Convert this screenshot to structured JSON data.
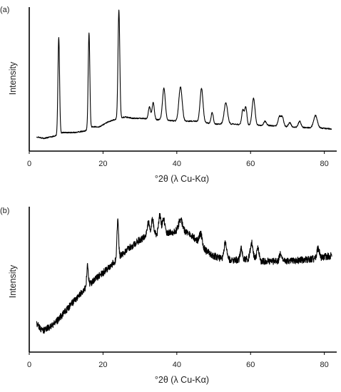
{
  "chart_data": [
    {
      "type": "line",
      "panel_label": "(a)",
      "xlabel": "°2θ (λ Cu-Kα)",
      "ylabel": "Intensity",
      "xlim": [
        0,
        82
      ],
      "xticks": [
        0,
        20,
        40,
        60,
        80
      ],
      "ylim": [
        0,
        100
      ],
      "yticks_shown": false,
      "grid": false,
      "legend": "none",
      "baseline": [
        [
          2,
          10
        ],
        [
          4,
          9
        ],
        [
          6,
          10
        ],
        [
          7.5,
          11
        ],
        [
          9,
          13
        ],
        [
          12,
          13
        ],
        [
          15,
          14
        ],
        [
          17,
          17
        ],
        [
          19,
          17
        ],
        [
          21,
          20
        ],
        [
          23,
          22
        ],
        [
          26,
          24
        ],
        [
          28,
          23
        ],
        [
          31,
          23
        ],
        [
          33,
          22
        ],
        [
          36,
          22
        ],
        [
          40,
          21
        ],
        [
          45,
          21
        ],
        [
          50,
          19
        ],
        [
          55,
          19
        ],
        [
          60,
          18
        ],
        [
          65,
          18
        ],
        [
          70,
          17
        ],
        [
          75,
          16.5
        ],
        [
          80,
          16
        ],
        [
          82,
          15.5
        ]
      ],
      "peaks": [
        {
          "x": 8.0,
          "y": 80,
          "w": 0.22
        },
        {
          "x": 16.2,
          "y": 83,
          "w": 0.22
        },
        {
          "x": 24.3,
          "y": 99,
          "w": 0.24
        },
        {
          "x": 32.6,
          "y": 31,
          "w": 0.3
        },
        {
          "x": 33.6,
          "y": 34,
          "w": 0.3
        },
        {
          "x": 36.5,
          "y": 44,
          "w": 0.38
        },
        {
          "x": 41.0,
          "y": 45,
          "w": 0.45
        },
        {
          "x": 46.7,
          "y": 44,
          "w": 0.4
        },
        {
          "x": 49.6,
          "y": 27,
          "w": 0.3
        },
        {
          "x": 53.3,
          "y": 34,
          "w": 0.45
        },
        {
          "x": 57.9,
          "y": 29,
          "w": 0.3
        },
        {
          "x": 58.7,
          "y": 31,
          "w": 0.3
        },
        {
          "x": 60.8,
          "y": 37,
          "w": 0.4
        },
        {
          "x": 63.9,
          "y": 21,
          "w": 0.35
        },
        {
          "x": 67.8,
          "y": 24,
          "w": 0.35
        },
        {
          "x": 68.6,
          "y": 24,
          "w": 0.35
        },
        {
          "x": 70.6,
          "y": 20,
          "w": 0.35
        },
        {
          "x": 73.3,
          "y": 21,
          "w": 0.35
        },
        {
          "x": 77.6,
          "y": 25,
          "w": 0.5
        }
      ],
      "noise": 0.4
    },
    {
      "type": "line",
      "panel_label": "(b)",
      "xlabel": "°2θ (λ Cu-Kα)",
      "ylabel": "Intensity",
      "xlim": [
        0,
        82
      ],
      "xticks": [
        0,
        20,
        40,
        60,
        80
      ],
      "ylim": [
        0,
        100
      ],
      "yticks_shown": false,
      "grid": false,
      "legend": "none",
      "baseline": [
        [
          2,
          20
        ],
        [
          3,
          16
        ],
        [
          4,
          15
        ],
        [
          6,
          18
        ],
        [
          8,
          23
        ],
        [
          10,
          29
        ],
        [
          12,
          35
        ],
        [
          14,
          41
        ],
        [
          16,
          46
        ],
        [
          18,
          51
        ],
        [
          20,
          55
        ],
        [
          22,
          60
        ],
        [
          24,
          65
        ],
        [
          26,
          70
        ],
        [
          28,
          74
        ],
        [
          30,
          78
        ],
        [
          32,
          81
        ],
        [
          34,
          82
        ],
        [
          36,
          83
        ],
        [
          38,
          83
        ],
        [
          40,
          84
        ],
        [
          42,
          84
        ],
        [
          44,
          81
        ],
        [
          46,
          76
        ],
        [
          48,
          70
        ],
        [
          50,
          67
        ],
        [
          52,
          65
        ],
        [
          54,
          64
        ],
        [
          57,
          64
        ],
        [
          60,
          65
        ],
        [
          63,
          63
        ],
        [
          66,
          63
        ],
        [
          70,
          63
        ],
        [
          74,
          64
        ],
        [
          78,
          65
        ],
        [
          82,
          67
        ]
      ],
      "peaks": [
        {
          "x": 15.8,
          "y": 60,
          "w": 0.22
        },
        {
          "x": 24.0,
          "y": 92,
          "w": 0.22
        },
        {
          "x": 32.3,
          "y": 90,
          "w": 0.3
        },
        {
          "x": 33.4,
          "y": 92,
          "w": 0.3
        },
        {
          "x": 35.4,
          "y": 95,
          "w": 0.3
        },
        {
          "x": 36.4,
          "y": 93,
          "w": 0.3
        },
        {
          "x": 41.0,
          "y": 92,
          "w": 0.5
        },
        {
          "x": 46.5,
          "y": 82,
          "w": 0.4
        },
        {
          "x": 53.2,
          "y": 76,
          "w": 0.4
        },
        {
          "x": 57.5,
          "y": 72,
          "w": 0.3
        },
        {
          "x": 60.3,
          "y": 76,
          "w": 0.35
        },
        {
          "x": 62.0,
          "y": 72,
          "w": 0.3
        },
        {
          "x": 68.2,
          "y": 69,
          "w": 0.35
        },
        {
          "x": 78.3,
          "y": 72,
          "w": 0.35
        }
      ],
      "noise": 2.4
    }
  ]
}
